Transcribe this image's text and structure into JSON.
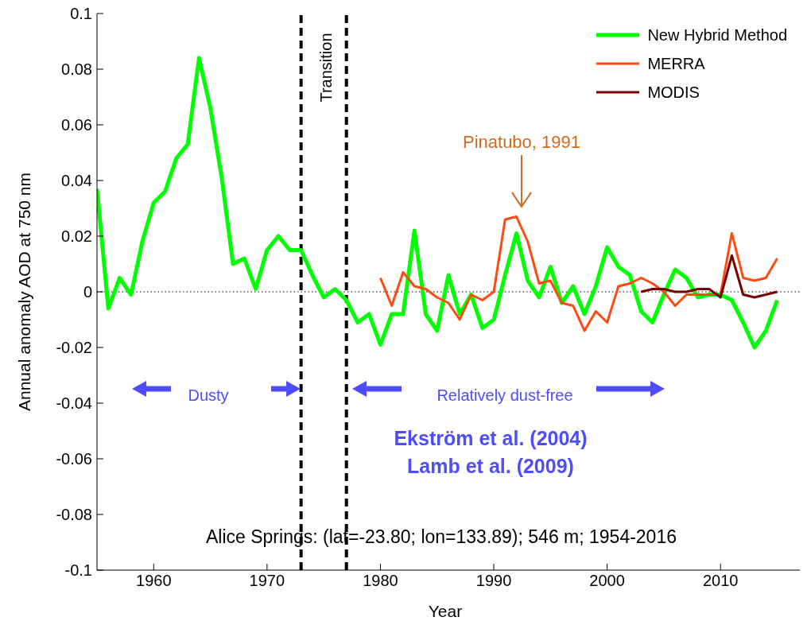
{
  "chart_data": {
    "type": "line",
    "xlabel": "Year",
    "ylabel": "Annual anomaly AOD at 750 nm",
    "xlim": [
      1955,
      2017
    ],
    "xticks": [
      1960,
      1970,
      1980,
      1990,
      2000,
      2010
    ],
    "ylim": [
      -0.1,
      0.1
    ],
    "yticks": [
      -0.1,
      -0.08,
      -0.06,
      -0.04,
      -0.02,
      0,
      0.02,
      0.04,
      0.06,
      0.08,
      0.1
    ],
    "grid": false,
    "legend": "top right",
    "marker": "none",
    "line_style": "solid",
    "series": [
      {
        "name": "New Hybrid Method",
        "color": "#00ff00",
        "x": [
          1955,
          1956,
          1957,
          1958,
          1959,
          1960,
          1961,
          1962,
          1963,
          1964,
          1965,
          1966,
          1967,
          1968,
          1969,
          1970,
          1971,
          1972,
          1973,
          1974,
          1975,
          1976,
          1977,
          1978,
          1979,
          1980,
          1981,
          1982,
          1983,
          1984,
          1985,
          1986,
          1987,
          1988,
          1989,
          1990,
          1991,
          1992,
          1993,
          1994,
          1995,
          1996,
          1997,
          1998,
          1999,
          2000,
          2001,
          2002,
          2003,
          2004,
          2005,
          2006,
          2007,
          2008,
          2009,
          2010,
          2011,
          2012,
          2013,
          2014,
          2015
        ],
        "values": [
          0.037,
          -0.006,
          0.005,
          -0.001,
          0.018,
          0.032,
          0.036,
          0.048,
          0.053,
          0.084,
          0.066,
          0.041,
          0.01,
          0.012,
          0.001,
          0.015,
          0.02,
          0.015,
          0.015,
          0.006,
          -0.002,
          0.001,
          -0.003,
          -0.011,
          -0.008,
          -0.019,
          -0.008,
          -0.008,
          0.022,
          -0.008,
          -0.014,
          0.006,
          -0.008,
          -0.001,
          -0.013,
          -0.01,
          0.006,
          0.021,
          0.004,
          -0.002,
          0.009,
          -0.004,
          0.002,
          -0.008,
          0.002,
          0.016,
          0.009,
          0.006,
          -0.007,
          -0.011,
          -0.001,
          0.008,
          0.005,
          -0.002,
          -0.001,
          -0.001,
          -0.003,
          -0.011,
          -0.02,
          -0.014,
          -0.003
        ]
      },
      {
        "name": "MERRA",
        "color": "#ff4a10",
        "x": [
          1980,
          1981,
          1982,
          1983,
          1984,
          1985,
          1986,
          1987,
          1988,
          1989,
          1990,
          1991,
          1992,
          1993,
          1994,
          1995,
          1996,
          1997,
          1998,
          1999,
          2000,
          2001,
          2002,
          2003,
          2004,
          2005,
          2006,
          2007,
          2008,
          2009,
          2010,
          2011,
          2012,
          2013,
          2014,
          2015
        ],
        "values": [
          0.005,
          -0.005,
          0.007,
          0.002,
          0.001,
          -0.002,
          -0.004,
          -0.01,
          -0.001,
          -0.003,
          0.0,
          0.026,
          0.027,
          0.018,
          0.003,
          0.004,
          -0.004,
          -0.005,
          -0.014,
          -0.007,
          -0.011,
          0.002,
          0.003,
          0.005,
          0.003,
          0.0,
          -0.005,
          -0.001,
          -0.001,
          -0.001,
          -0.001,
          0.021,
          0.005,
          0.004,
          0.005,
          0.012
        ]
      },
      {
        "name": "MODIS",
        "color": "#7a0000",
        "x": [
          2003,
          2004,
          2005,
          2006,
          2007,
          2008,
          2009,
          2010,
          2011,
          2012,
          2013,
          2014,
          2015
        ],
        "values": [
          0.0,
          0.001,
          0.001,
          0.0,
          0.0,
          0.001,
          0.001,
          -0.002,
          0.013,
          -0.001,
          -0.002,
          -0.001,
          0.0
        ]
      }
    ],
    "ref_lines": [
      {
        "axis": "x",
        "value": 1973,
        "color": "#000000",
        "line_style": "dashed"
      },
      {
        "axis": "x",
        "value": 1977,
        "color": "#000000",
        "line_style": "dashed"
      },
      {
        "axis": "y",
        "value": 0,
        "color": "#000000",
        "line_style": "dotted"
      }
    ],
    "annotations": [
      "Pinatubo, 1991",
      "Transition",
      "Dusty",
      "Relatively dust-free",
      "Ekström et al. (2004)",
      "Lamb et al. (2009)",
      "Alice Springs: (lat=-23.80; lon=133.89); 546 m; 1954-2016"
    ]
  }
}
